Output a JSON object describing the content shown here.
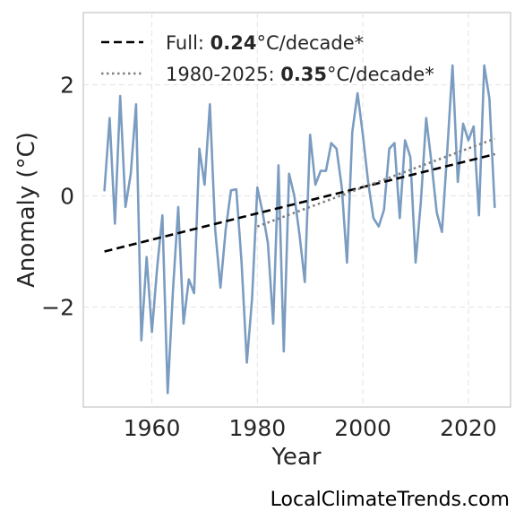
{
  "chart_data": {
    "type": "line",
    "xlabel": "Year",
    "ylabel": "Anomaly (°C)",
    "xlim": [
      1947,
      2028
    ],
    "ylim": [
      -3.8,
      3.3
    ],
    "xticks": [
      1960,
      1980,
      2000,
      2020
    ],
    "yticks": [
      -2,
      0,
      2
    ],
    "ytick_labels": [
      "−2",
      "0",
      "2"
    ],
    "grid": true,
    "legend_position": "top-left",
    "series": [
      {
        "kind": "anomaly",
        "color": "#7b9cc1",
        "x": [
          1951,
          1952,
          1953,
          1954,
          1955,
          1956,
          1957,
          1958,
          1959,
          1960,
          1961,
          1962,
          1963,
          1964,
          1965,
          1966,
          1967,
          1968,
          1969,
          1970,
          1971,
          1972,
          1973,
          1974,
          1975,
          1976,
          1977,
          1978,
          1979,
          1980,
          1981,
          1982,
          1983,
          1984,
          1985,
          1986,
          1987,
          1988,
          1989,
          1990,
          1991,
          1992,
          1993,
          1994,
          1995,
          1996,
          1997,
          1998,
          1999,
          2000,
          2001,
          2002,
          2003,
          2004,
          2005,
          2006,
          2007,
          2008,
          2009,
          2010,
          2011,
          2012,
          2013,
          2014,
          2015,
          2016,
          2017,
          2018,
          2019,
          2020,
          2021,
          2022,
          2023,
          2024,
          2025
        ],
        "values": [
          0.1,
          1.4,
          -0.5,
          1.8,
          -0.2,
          0.4,
          1.65,
          -2.6,
          -1.1,
          -2.45,
          -1.3,
          -0.35,
          -3.55,
          -1.7,
          -0.2,
          -2.3,
          -1.5,
          -1.75,
          0.85,
          0.2,
          1.65,
          -0.6,
          -1.65,
          -0.6,
          0.1,
          0.12,
          -1.2,
          -3.0,
          -1.85,
          0.15,
          -0.3,
          -0.85,
          -2.3,
          0.55,
          -2.8,
          0.4,
          0.0,
          -0.7,
          -1.55,
          1.1,
          0.2,
          0.45,
          0.45,
          0.95,
          0.85,
          0.15,
          -1.2,
          1.15,
          1.85,
          1.1,
          0.25,
          -0.4,
          -0.55,
          -0.25,
          0.85,
          0.95,
          -0.4,
          1.0,
          0.7,
          -1.2,
          -0.1,
          1.4,
          0.6,
          -0.3,
          -0.65,
          0.8,
          2.35,
          0.25,
          1.3,
          1.0,
          1.25,
          -0.35,
          2.35,
          1.75,
          -0.2
        ]
      },
      {
        "kind": "trend-full",
        "color": "#000000",
        "x": [
          1951,
          2025
        ],
        "values": [
          -1.0,
          0.75
        ]
      },
      {
        "kind": "trend-recent",
        "color": "#7f7f7f",
        "x": [
          1980,
          2025
        ],
        "values": [
          -0.55,
          1.03
        ]
      }
    ],
    "legend": [
      {
        "prefix": "Full: ",
        "bold": "0.24",
        "suffix": "°C/decade*",
        "style": "dashed",
        "color": "#000000"
      },
      {
        "prefix": "1980-2025: ",
        "bold": "0.35",
        "suffix": "°C/decade*",
        "style": "dotted",
        "color": "#7f7f7f"
      }
    ]
  },
  "credit": "LocalClimateTrends.com"
}
